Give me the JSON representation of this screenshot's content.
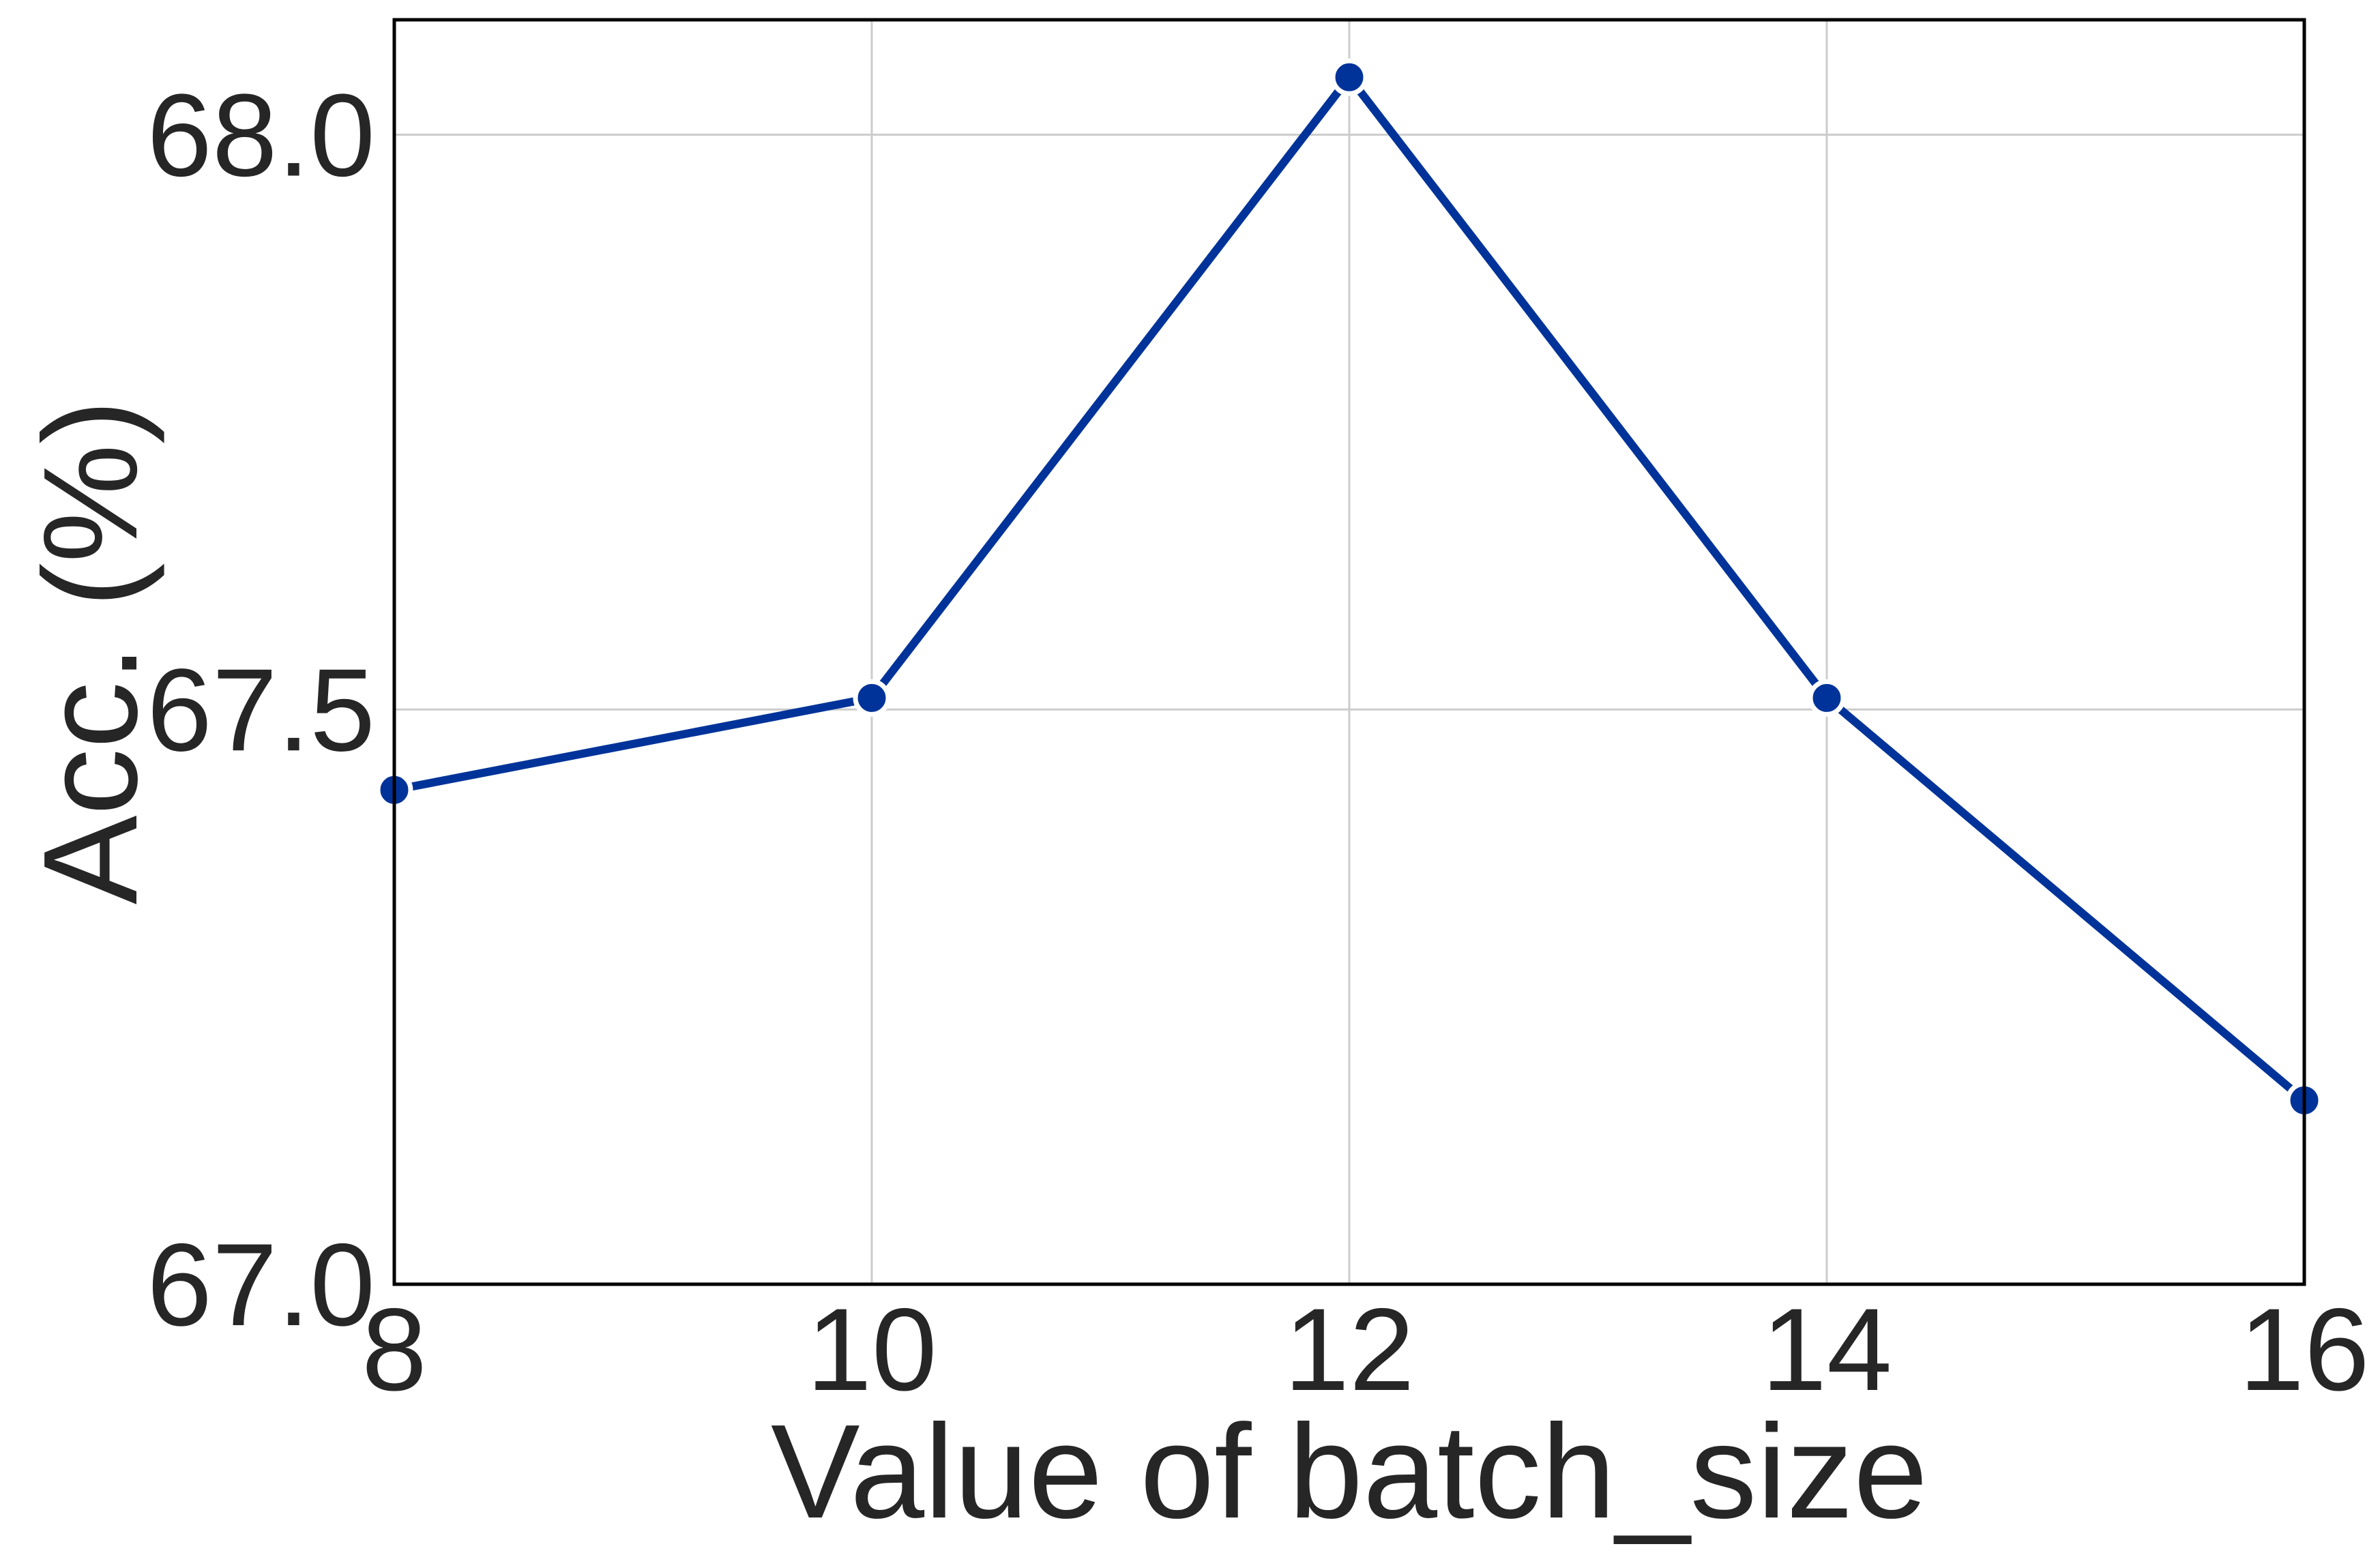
{
  "chart_data": {
    "type": "line",
    "xlabel": "Value of batch_size",
    "ylabel": "Acc. (%)",
    "xlim": [
      8,
      16
    ],
    "ylim": [
      67.0,
      68.1
    ],
    "xticks": [
      8,
      10,
      12,
      14,
      16
    ],
    "xtick_labels": [
      "8",
      "10",
      "12",
      "14",
      "16"
    ],
    "yticks": [
      67.0,
      67.5,
      68.0
    ],
    "ytick_labels": [
      "67.0",
      "67.5",
      "68.0"
    ],
    "grid": true,
    "legend": "none",
    "series": [
      {
        "x": [
          8,
          10,
          12,
          14,
          16
        ],
        "values": [
          67.43,
          67.51,
          68.05,
          67.51,
          67.16
        ],
        "color": "#003399",
        "marker": "circle"
      }
    ]
  }
}
